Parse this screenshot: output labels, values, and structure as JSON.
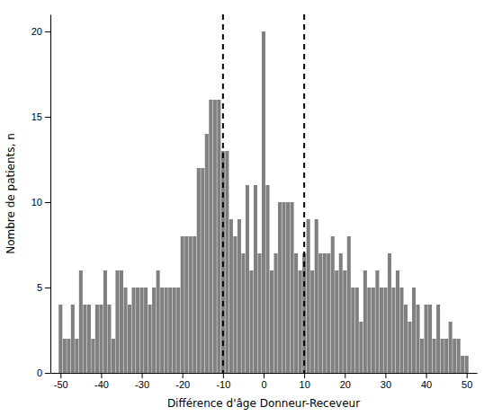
{
  "chart_data": {
    "type": "bar",
    "xlabel": "Différence d'âge Donneur-Receveur",
    "ylabel": "Nombre de patients, n",
    "color": "#808080",
    "grid": false,
    "xlim": [
      -52.5,
      52.5
    ],
    "ylim": [
      0,
      21
    ],
    "xticks": [
      -50,
      -40,
      -30,
      -20,
      -10,
      0,
      10,
      20,
      30,
      40,
      50
    ],
    "yticks": [
      0,
      5,
      10,
      15,
      20
    ],
    "vlines": [
      -10,
      10
    ],
    "x": [
      -50,
      -49,
      -48,
      -47,
      -46,
      -45,
      -44,
      -43,
      -42,
      -41,
      -40,
      -39,
      -38,
      -37,
      -36,
      -35,
      -34,
      -33,
      -32,
      -31,
      -30,
      -29,
      -28,
      -27,
      -26,
      -25,
      -24,
      -23,
      -22,
      -21,
      -20,
      -19,
      -18,
      -17,
      -16,
      -15,
      -14,
      -13,
      -12,
      -11,
      -10,
      -9,
      -8,
      -7,
      -6,
      -5,
      -4,
      -3,
      -2,
      -1,
      0,
      1,
      2,
      3,
      4,
      5,
      6,
      7,
      8,
      9,
      10,
      11,
      12,
      13,
      14,
      15,
      16,
      17,
      18,
      19,
      20,
      21,
      22,
      23,
      24,
      25,
      26,
      27,
      28,
      29,
      30,
      31,
      32,
      33,
      34,
      35,
      36,
      37,
      38,
      39,
      40,
      41,
      42,
      43,
      44,
      45,
      46,
      47,
      48,
      49,
      50
    ],
    "values": [
      4,
      2,
      2,
      4,
      2,
      6,
      4,
      4,
      2,
      4,
      4,
      6,
      4,
      2,
      6,
      6,
      5,
      4,
      5,
      5,
      5,
      5,
      4,
      5,
      6,
      5,
      5,
      5,
      5,
      5,
      8,
      8,
      8,
      8,
      12,
      12,
      14,
      16,
      16,
      16,
      13,
      13,
      9,
      8,
      9,
      7,
      11,
      6,
      11,
      7,
      20,
      11,
      6,
      7,
      10,
      10,
      10,
      10,
      7,
      6,
      7,
      9,
      6,
      9,
      7,
      7,
      7,
      8,
      6,
      7,
      6,
      8,
      5,
      5,
      3,
      6,
      5,
      5,
      6,
      5,
      5,
      7,
      5,
      6,
      5,
      4,
      3,
      5,
      4,
      2,
      4,
      4,
      2,
      4,
      2,
      2,
      3,
      2,
      2,
      1,
      1
    ]
  }
}
